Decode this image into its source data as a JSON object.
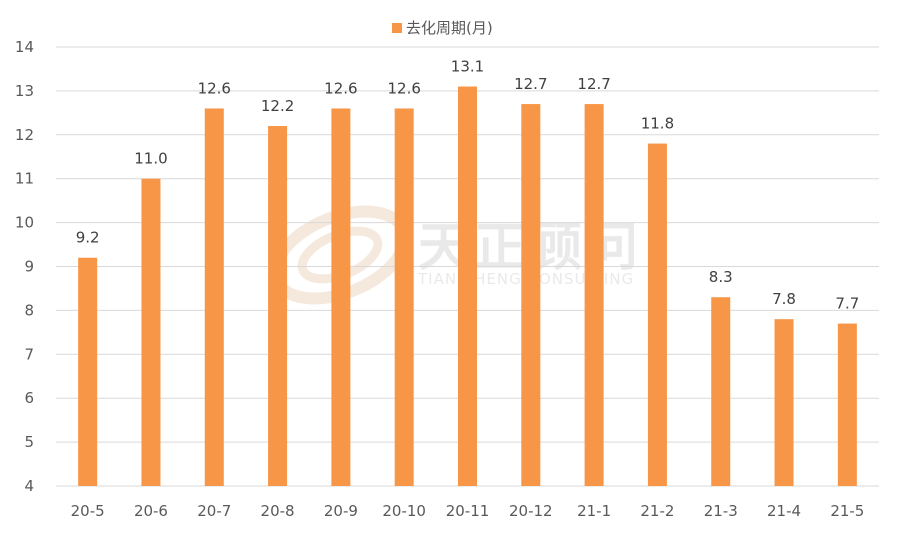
{
  "chart_data": {
    "type": "bar",
    "categories": [
      "20-5",
      "20-6",
      "20-7",
      "20-8",
      "20-9",
      "20-10",
      "20-11",
      "20-12",
      "21-1",
      "21-2",
      "21-3",
      "21-4",
      "21-5"
    ],
    "series": [
      {
        "name": "去化周期(月)",
        "values": [
          9.2,
          11.0,
          12.6,
          12.2,
          12.6,
          12.6,
          13.1,
          12.7,
          12.7,
          11.8,
          8.3,
          7.8,
          7.7
        ],
        "color": "#F79646"
      }
    ],
    "data_labels": [
      "9.2",
      "11.0",
      "12.6",
      "12.2",
      "12.6",
      "12.6",
      "13.1",
      "12.7",
      "12.7",
      "11.8",
      "8.3",
      "7.8",
      "7.7"
    ],
    "yticks": [
      4,
      5,
      6,
      7,
      8,
      9,
      10,
      11,
      12,
      13,
      14
    ],
    "ylim": [
      4,
      14
    ],
    "grid": true,
    "legend_position": "top-center",
    "title": "",
    "xlabel": "",
    "ylabel": ""
  },
  "watermark": {
    "text_cn": "天正顾问",
    "text_en": "TIAN ZHENG CONSULTING"
  }
}
